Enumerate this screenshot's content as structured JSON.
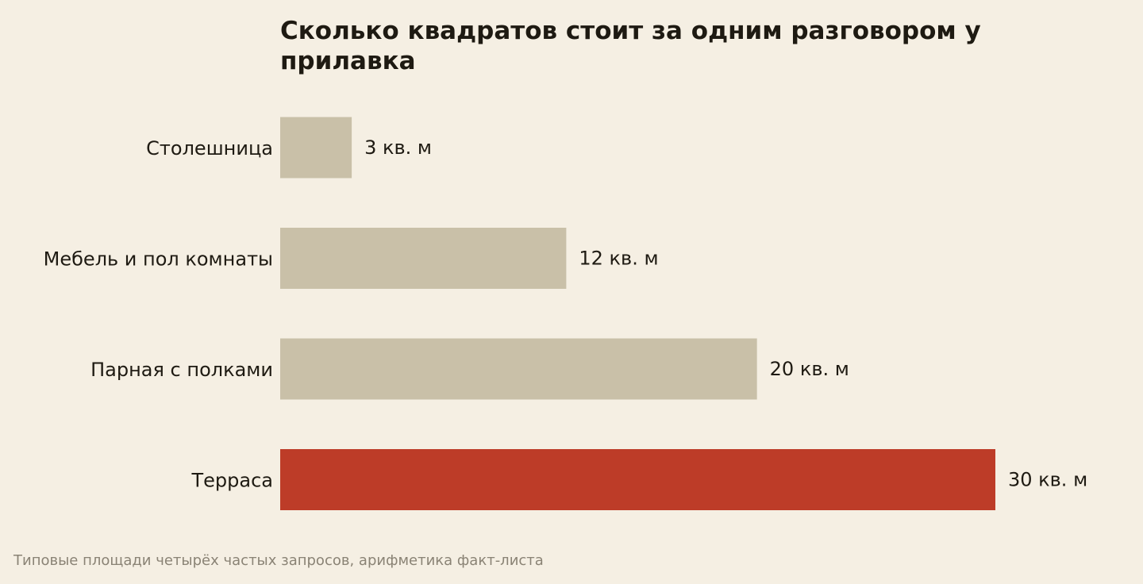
{
  "chart_data": {
    "type": "bar",
    "orientation": "horizontal",
    "title": "Сколько квадратов стоит за одним разговором у прилавка",
    "categories": [
      "Столешница",
      "Мебель и пол комнаты",
      "Парная с полками",
      "Терраса"
    ],
    "values": [
      3,
      12,
      20,
      30
    ],
    "value_labels": [
      "3 кв. м",
      "12 кв. м",
      "20 кв. м",
      "30 кв. м"
    ],
    "unit": "кв. м",
    "xlim": [
      0,
      30
    ],
    "grid": false,
    "legend": "none",
    "highlight_index": 3,
    "colors": {
      "bar": "#c9c0a8",
      "highlight": "#bd3c28",
      "text": "#1e1a12",
      "background": "#f5efe3"
    }
  },
  "footnote": "Типовые площади четырёх частых запросов, арифметика факт-листа"
}
